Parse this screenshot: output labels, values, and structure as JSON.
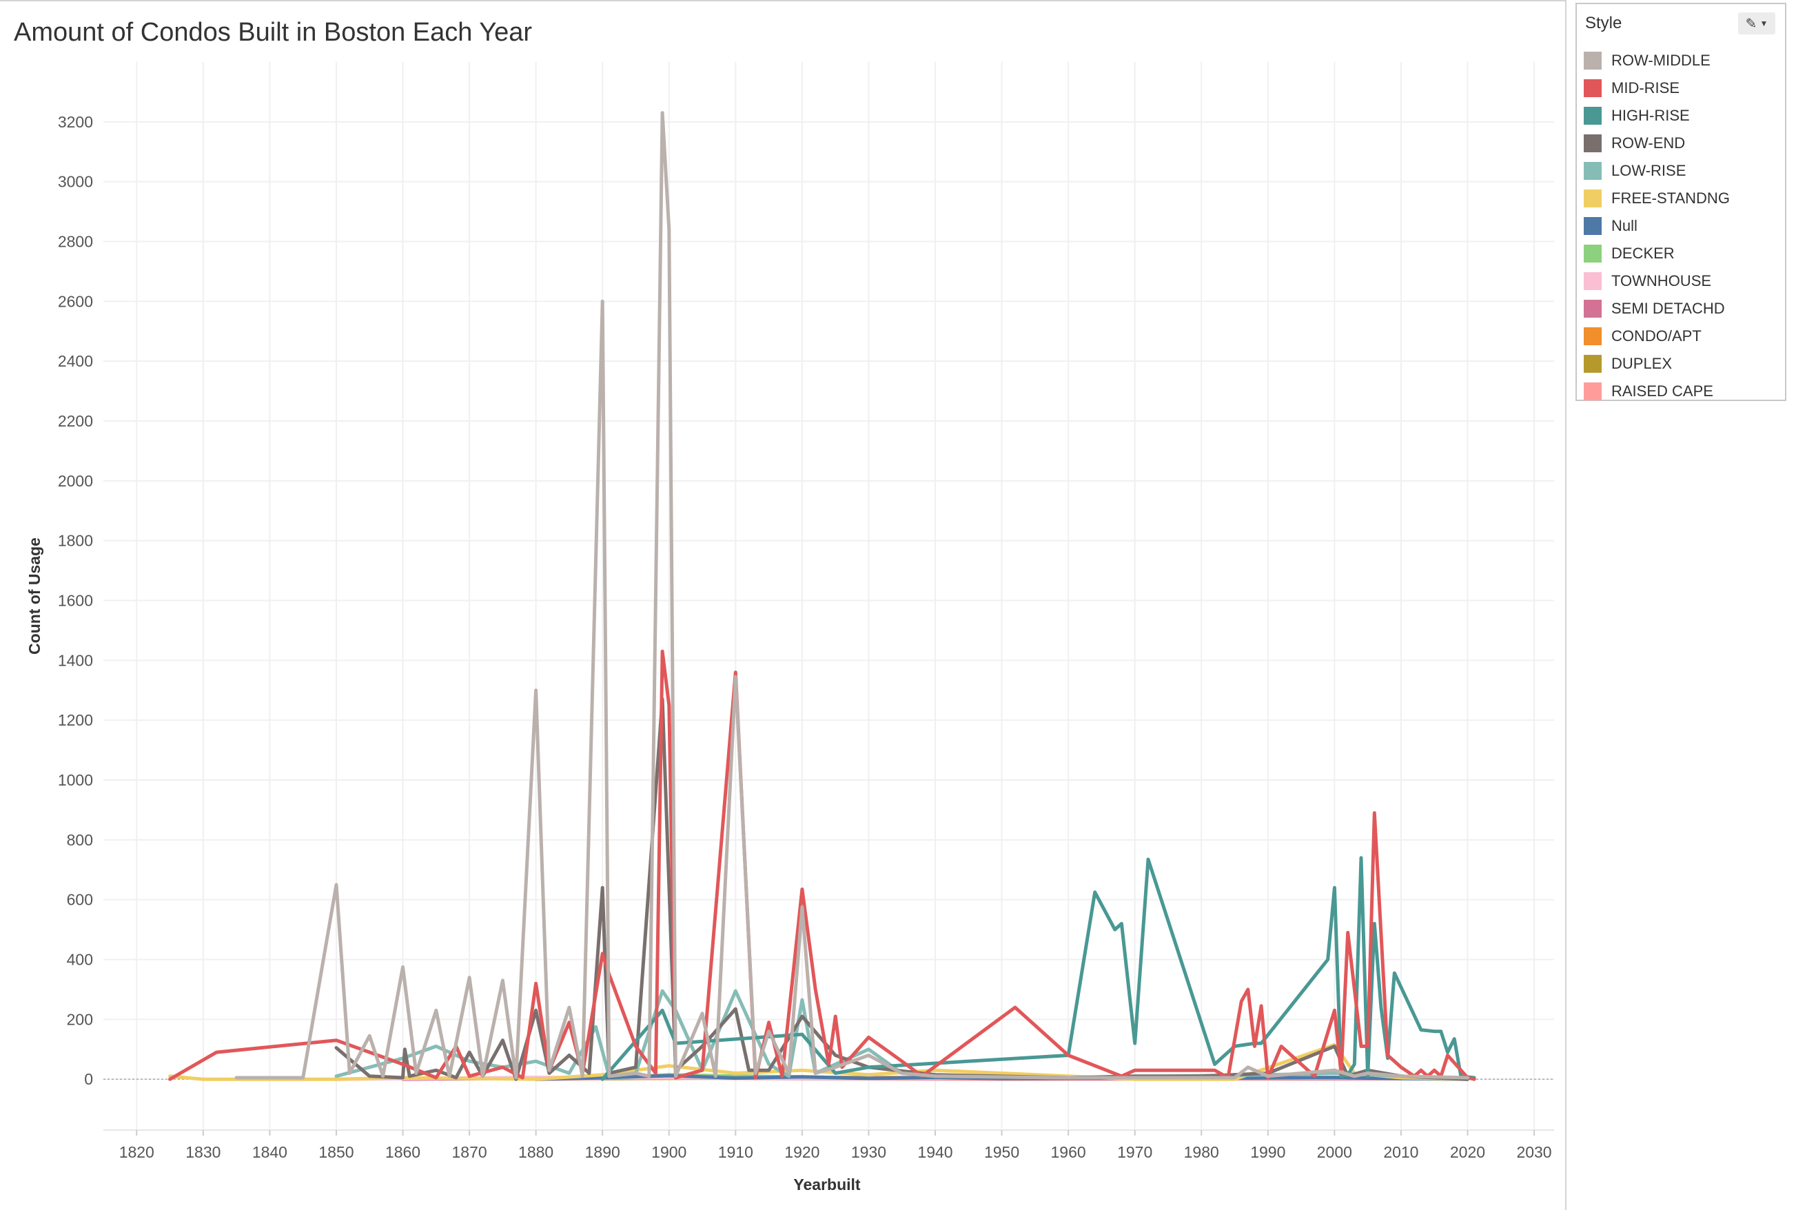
{
  "page": {
    "title": "Amount of Condos Built in Boston Each Year"
  },
  "legend": {
    "title": "Style",
    "items": [
      {
        "label": "ROW-MIDDLE",
        "color": "#bab0ac"
      },
      {
        "label": "MID-RISE",
        "color": "#e15759"
      },
      {
        "label": "HIGH-RISE",
        "color": "#499894"
      },
      {
        "label": "ROW-END",
        "color": "#79706e"
      },
      {
        "label": "LOW-RISE",
        "color": "#86bcb6"
      },
      {
        "label": "FREE-STANDNG",
        "color": "#f1ce63"
      },
      {
        "label": "Null",
        "color": "#4e79a7"
      },
      {
        "label": "DECKER",
        "color": "#8cd17d"
      },
      {
        "label": "TOWNHOUSE",
        "color": "#fabfd2"
      },
      {
        "label": "SEMI DETACHD",
        "color": "#d37295"
      },
      {
        "label": "CONDO/APT",
        "color": "#f28e2b"
      },
      {
        "label": "DUPLEX",
        "color": "#b6992d"
      },
      {
        "label": "RAISED CAPE",
        "color": "#ff9d9a"
      }
    ]
  },
  "chart_data": {
    "type": "line",
    "title": "Amount of Condos Built in Boston Each Year",
    "xlabel": "Yearbuilt",
    "ylabel": "Count of Usage",
    "xlim": [
      1815,
      2033
    ],
    "ylim": [
      -170,
      3400
    ],
    "xticks": [
      1820,
      1830,
      1840,
      1850,
      1860,
      1870,
      1880,
      1890,
      1900,
      1910,
      1920,
      1930,
      1940,
      1950,
      1960,
      1970,
      1980,
      1990,
      2000,
      2010,
      2020,
      2030
    ],
    "yticks": [
      0,
      200,
      400,
      600,
      800,
      1000,
      1200,
      1400,
      1600,
      1800,
      2000,
      2200,
      2400,
      2600,
      2800,
      3000,
      3200
    ],
    "grid": true,
    "legend_position": "right",
    "series": [
      {
        "name": "RAISED CAPE",
        "color": "#ff9d9a",
        "points": [
          [
            1880,
            0
          ],
          [
            1900,
            4
          ],
          [
            1950,
            0
          ],
          [
            2020,
            2
          ]
        ]
      },
      {
        "name": "DUPLEX",
        "color": "#b6992d",
        "points": [
          [
            1890,
            2
          ],
          [
            1920,
            5
          ],
          [
            2000,
            2
          ]
        ]
      },
      {
        "name": "CONDO/APT",
        "color": "#f28e2b",
        "points": [
          [
            1895,
            3
          ],
          [
            1925,
            6
          ],
          [
            2000,
            3
          ]
        ]
      },
      {
        "name": "SEMI DETACHD",
        "color": "#d37295",
        "points": [
          [
            1860,
            0
          ],
          [
            1890,
            5
          ],
          [
            1920,
            3
          ],
          [
            2010,
            2
          ]
        ]
      },
      {
        "name": "TOWNHOUSE",
        "color": "#fabfd2",
        "points": [
          [
            1850,
            0
          ],
          [
            1880,
            6
          ],
          [
            1920,
            4
          ],
          [
            1980,
            3
          ],
          [
            2015,
            5
          ]
        ]
      },
      {
        "name": "DECKER",
        "color": "#8cd17d",
        "points": [
          [
            1890,
            3
          ],
          [
            1900,
            15
          ],
          [
            1910,
            10
          ],
          [
            1920,
            8
          ],
          [
            1930,
            3
          ]
        ]
      },
      {
        "name": "Null",
        "color": "#4e79a7",
        "points": [
          [
            1880,
            0
          ],
          [
            1890,
            5
          ],
          [
            1900,
            12
          ],
          [
            1910,
            4
          ],
          [
            1920,
            8
          ],
          [
            1930,
            3
          ],
          [
            1940,
            6
          ],
          [
            1950,
            2
          ],
          [
            1960,
            3
          ],
          [
            1980,
            3
          ],
          [
            2000,
            6
          ],
          [
            2010,
            2
          ],
          [
            2020,
            0
          ]
        ]
      },
      {
        "name": "FREE-STANDNG",
        "color": "#f1ce63",
        "points": [
          [
            1825,
            10
          ],
          [
            1830,
            0
          ],
          [
            1850,
            0
          ],
          [
            1860,
            5
          ],
          [
            1880,
            0
          ],
          [
            1890,
            15
          ],
          [
            1900,
            45
          ],
          [
            1910,
            20
          ],
          [
            1920,
            30
          ],
          [
            1930,
            15
          ],
          [
            1940,
            30
          ],
          [
            1950,
            20
          ],
          [
            1960,
            10
          ],
          [
            1970,
            0
          ],
          [
            1985,
            0
          ],
          [
            2000,
            115
          ],
          [
            2003,
            20
          ],
          [
            2010,
            5
          ],
          [
            2020,
            0
          ]
        ]
      },
      {
        "name": "LOW-RISE",
        "color": "#86bcb6",
        "points": [
          [
            1850,
            10
          ],
          [
            1860,
            70
          ],
          [
            1865,
            110
          ],
          [
            1870,
            60
          ],
          [
            1875,
            40
          ],
          [
            1880,
            60
          ],
          [
            1885,
            20
          ],
          [
            1889,
            175
          ],
          [
            1891,
            10
          ],
          [
            1895,
            20
          ],
          [
            1899,
            295
          ],
          [
            1901,
            230
          ],
          [
            1905,
            30
          ],
          [
            1910,
            295
          ],
          [
            1915,
            50
          ],
          [
            1918,
            10
          ],
          [
            1920,
            265
          ],
          [
            1922,
            20
          ],
          [
            1930,
            100
          ],
          [
            1935,
            20
          ],
          [
            1940,
            10
          ],
          [
            1960,
            5
          ],
          [
            1990,
            15
          ],
          [
            2000,
            20
          ],
          [
            2010,
            10
          ],
          [
            2020,
            0
          ]
        ]
      },
      {
        "name": "ROW-END",
        "color": "#79706e",
        "points": [
          [
            1850,
            105
          ],
          [
            1855,
            10
          ],
          [
            1860,
            5
          ],
          [
            1860.3,
            100
          ],
          [
            1861,
            10
          ],
          [
            1865,
            30
          ],
          [
            1868,
            5
          ],
          [
            1870,
            90
          ],
          [
            1872,
            10
          ],
          [
            1875,
            130
          ],
          [
            1877,
            0
          ],
          [
            1880,
            230
          ],
          [
            1882,
            20
          ],
          [
            1885,
            80
          ],
          [
            1888,
            20
          ],
          [
            1890,
            640
          ],
          [
            1891,
            20
          ],
          [
            1895,
            40
          ],
          [
            1899,
            1270
          ],
          [
            1901,
            30
          ],
          [
            1905,
            110
          ],
          [
            1910,
            235
          ],
          [
            1912,
            30
          ],
          [
            1915,
            30
          ],
          [
            1920,
            210
          ],
          [
            1925,
            80
          ],
          [
            1930,
            40
          ],
          [
            1940,
            15
          ],
          [
            1960,
            5
          ],
          [
            1970,
            10
          ],
          [
            1980,
            10
          ],
          [
            1990,
            20
          ],
          [
            2000,
            110
          ],
          [
            2002,
            10
          ],
          [
            2005,
            30
          ],
          [
            2010,
            10
          ],
          [
            2020,
            0
          ]
        ]
      },
      {
        "name": "HIGH-RISE",
        "color": "#499894",
        "points": [
          [
            1890,
            0
          ],
          [
            1899,
            230
          ],
          [
            1901,
            120
          ],
          [
            1920,
            150
          ],
          [
            1925,
            20
          ],
          [
            1930,
            40
          ],
          [
            1960,
            80
          ],
          [
            1964,
            625
          ],
          [
            1967,
            500
          ],
          [
            1968,
            520
          ],
          [
            1970,
            120
          ],
          [
            1972,
            735
          ],
          [
            1982,
            50
          ],
          [
            1985,
            110
          ],
          [
            1988,
            120
          ],
          [
            1989,
            120
          ],
          [
            1999,
            400
          ],
          [
            2000,
            640
          ],
          [
            2001,
            10
          ],
          [
            2002,
            15
          ],
          [
            2003,
            50
          ],
          [
            2004,
            740
          ],
          [
            2005,
            10
          ],
          [
            2006,
            520
          ],
          [
            2007,
            240
          ],
          [
            2008,
            70
          ],
          [
            2009,
            355
          ],
          [
            2013,
            165
          ],
          [
            2015,
            160
          ],
          [
            2016,
            160
          ],
          [
            2017,
            90
          ],
          [
            2018,
            135
          ],
          [
            2019,
            10
          ],
          [
            2021,
            5
          ]
        ]
      },
      {
        "name": "MID-RISE",
        "color": "#e15759",
        "points": [
          [
            1825,
            0
          ],
          [
            1832,
            90
          ],
          [
            1850,
            130
          ],
          [
            1860,
            50
          ],
          [
            1865,
            5
          ],
          [
            1868,
            110
          ],
          [
            1870,
            10
          ],
          [
            1875,
            40
          ],
          [
            1878,
            5
          ],
          [
            1880,
            320
          ],
          [
            1882,
            30
          ],
          [
            1885,
            190
          ],
          [
            1887,
            20
          ],
          [
            1890,
            420
          ],
          [
            1891,
            350
          ],
          [
            1895,
            110
          ],
          [
            1898,
            20
          ],
          [
            1899,
            1430
          ],
          [
            1900,
            1250
          ],
          [
            1901,
            5
          ],
          [
            1905,
            30
          ],
          [
            1910,
            1360
          ],
          [
            1913,
            5
          ],
          [
            1915,
            190
          ],
          [
            1917,
            10
          ],
          [
            1920,
            635
          ],
          [
            1922,
            300
          ],
          [
            1924,
            50
          ],
          [
            1925,
            210
          ],
          [
            1926,
            40
          ],
          [
            1930,
            140
          ],
          [
            1935,
            60
          ],
          [
            1938,
            10
          ],
          [
            1952,
            240
          ],
          [
            1960,
            80
          ],
          [
            1968,
            10
          ],
          [
            1970,
            30
          ],
          [
            1982,
            30
          ],
          [
            1984,
            5
          ],
          [
            1986,
            260
          ],
          [
            1987,
            300
          ],
          [
            1988,
            110
          ],
          [
            1989,
            245
          ],
          [
            1990,
            5
          ],
          [
            1992,
            110
          ],
          [
            1997,
            10
          ],
          [
            2000,
            230
          ],
          [
            2001,
            20
          ],
          [
            2002,
            490
          ],
          [
            2004,
            110
          ],
          [
            2005,
            110
          ],
          [
            2006,
            890
          ],
          [
            2008,
            80
          ],
          [
            2010,
            40
          ],
          [
            2012,
            10
          ],
          [
            2013,
            30
          ],
          [
            2014,
            10
          ],
          [
            2015,
            30
          ],
          [
            2016,
            10
          ],
          [
            2017,
            80
          ],
          [
            2020,
            5
          ],
          [
            2021,
            0
          ]
        ]
      },
      {
        "name": "ROW-MIDDLE",
        "color": "#bab0ac",
        "points": [
          [
            1835,
            5
          ],
          [
            1845,
            5
          ],
          [
            1850,
            650
          ],
          [
            1852,
            20
          ],
          [
            1855,
            145
          ],
          [
            1857,
            10
          ],
          [
            1860,
            375
          ],
          [
            1862,
            20
          ],
          [
            1865,
            230
          ],
          [
            1867,
            10
          ],
          [
            1870,
            340
          ],
          [
            1872,
            10
          ],
          [
            1875,
            330
          ],
          [
            1877,
            5
          ],
          [
            1880,
            1300
          ],
          [
            1882,
            30
          ],
          [
            1885,
            240
          ],
          [
            1887,
            10
          ],
          [
            1890,
            2600
          ],
          [
            1891,
            10
          ],
          [
            1895,
            20
          ],
          [
            1897,
            10
          ],
          [
            1899,
            3230
          ],
          [
            1900,
            2840
          ],
          [
            1901,
            10
          ],
          [
            1905,
            220
          ],
          [
            1907,
            10
          ],
          [
            1910,
            1345
          ],
          [
            1913,
            20
          ],
          [
            1915,
            160
          ],
          [
            1918,
            20
          ],
          [
            1920,
            575
          ],
          [
            1922,
            20
          ],
          [
            1925,
            40
          ],
          [
            1930,
            80
          ],
          [
            1935,
            20
          ],
          [
            1940,
            10
          ],
          [
            1960,
            5
          ],
          [
            1985,
            5
          ],
          [
            1987,
            40
          ],
          [
            1990,
            10
          ],
          [
            2000,
            30
          ],
          [
            2003,
            10
          ],
          [
            2005,
            20
          ],
          [
            2010,
            10
          ],
          [
            2020,
            5
          ]
        ]
      }
    ]
  }
}
